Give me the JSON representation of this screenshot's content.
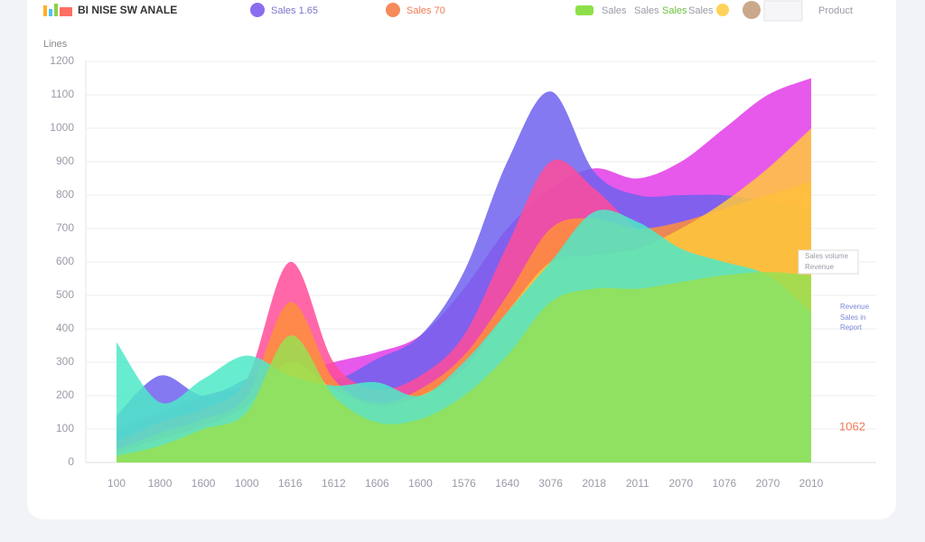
{
  "header": {
    "title": "BI NISE SW ANALE",
    "nav": [
      "Sales 1.65",
      "Sales 70",
      "Sales",
      "Sales",
      "Sales",
      "Sales",
      "Product"
    ]
  },
  "chart_data": {
    "type": "area",
    "y_label": "Lines",
    "categories": [
      "100",
      "1800",
      "1600",
      "1000",
      "1616",
      "1612",
      "1606",
      "1600",
      "1576",
      "1640",
      "3076",
      "2018",
      "2011",
      "2070",
      "1076",
      "2070",
      "2010"
    ],
    "ylim": [
      0,
      1200
    ],
    "yticks": [
      0,
      100,
      200,
      300,
      400,
      500,
      600,
      700,
      800,
      900,
      1000,
      1100,
      1200
    ],
    "grid": true,
    "annotations": [
      "Sales volume",
      "Revenue",
      "Revenue",
      "Sales in",
      "Report",
      "1062"
    ],
    "series": [
      {
        "name": "Magenta",
        "color": "#e33ce8",
        "values": [
          100,
          150,
          200,
          230,
          260,
          300,
          330,
          380,
          520,
          700,
          820,
          880,
          850,
          900,
          1000,
          1100,
          1150
        ]
      },
      {
        "name": "Purple",
        "color": "#6e62ef",
        "values": [
          140,
          260,
          200,
          250,
          300,
          250,
          310,
          380,
          570,
          900,
          1110,
          870,
          800,
          800,
          800,
          780,
          760
        ]
      },
      {
        "name": "Pink",
        "color": "#ff4c9a",
        "values": [
          60,
          120,
          160,
          250,
          600,
          300,
          220,
          260,
          380,
          650,
          900,
          820,
          700,
          650,
          600,
          580,
          560
        ]
      },
      {
        "name": "Orange",
        "color": "#ff8f3a",
        "values": [
          40,
          90,
          130,
          200,
          480,
          250,
          180,
          220,
          320,
          500,
          700,
          730,
          700,
          720,
          760,
          800,
          840
        ]
      },
      {
        "name": "Yellow",
        "color": "#ffc83c",
        "values": [
          30,
          70,
          110,
          170,
          300,
          220,
          170,
          200,
          280,
          450,
          600,
          620,
          640,
          700,
          780,
          880,
          1000
        ]
      },
      {
        "name": "Teal",
        "color": "#4ee9c8",
        "values": [
          360,
          180,
          250,
          320,
          260,
          230,
          240,
          200,
          300,
          450,
          600,
          750,
          720,
          640,
          600,
          560,
          450
        ]
      },
      {
        "name": "Green",
        "color": "#98e052",
        "values": [
          20,
          50,
          100,
          150,
          380,
          200,
          120,
          130,
          200,
          320,
          480,
          520,
          520,
          540,
          560,
          570,
          560
        ]
      }
    ]
  }
}
